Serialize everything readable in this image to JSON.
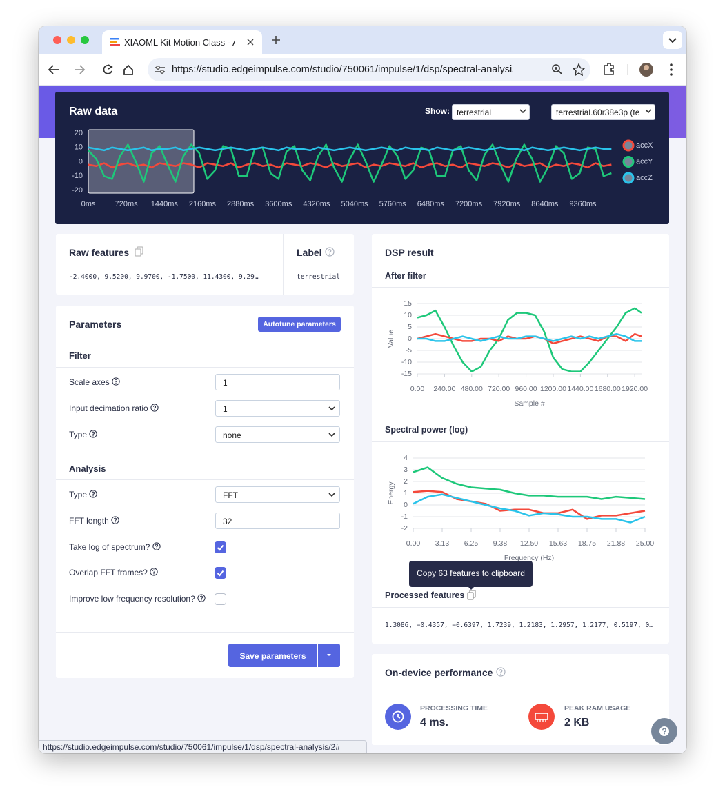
{
  "browser": {
    "tab_title": "XIAOML Kit Motion Class - AI",
    "url": "https://studio.edgeimpulse.com/studio/750061/impulse/1/dsp/spectral-analysis...",
    "status_url": "https://studio.edgeimpulse.com/studio/750061/impulse/1/dsp/spectral-analysis/2#"
  },
  "raw_data": {
    "title": "Raw data",
    "show_label": "Show:",
    "show_value": "terrestrial",
    "sample_value": "terrestrial.60r38e3p (te"
  },
  "raw_features": {
    "title": "Raw features",
    "values": "-2.4000, 9.5200, 9.9700, -1.7500, 11.4300, 9.29…"
  },
  "label": {
    "title": "Label",
    "value": "terrestrial"
  },
  "parameters": {
    "title": "Parameters",
    "autotune": "Autotune parameters",
    "save": "Save parameters",
    "filter": {
      "heading": "Filter",
      "fields": [
        {
          "label": "Scale axes",
          "control": "input",
          "value": "1",
          "help": true
        },
        {
          "label": "Input decimation ratio",
          "control": "select",
          "value": "1",
          "help": true
        },
        {
          "label": "Type",
          "control": "select",
          "value": "none",
          "help": true
        }
      ]
    },
    "analysis": {
      "heading": "Analysis",
      "fields": [
        {
          "label": "Type",
          "control": "select",
          "value": "FFT",
          "help": true
        },
        {
          "label": "FFT length",
          "control": "input",
          "value": "32",
          "help": true
        },
        {
          "label": "Take log of spectrum?",
          "control": "checkbox",
          "checked": true,
          "help": true
        },
        {
          "label": "Overlap FFT frames?",
          "control": "checkbox",
          "checked": true,
          "help": true
        },
        {
          "label": "Improve low frequency resolution?",
          "control": "checkbox",
          "checked": false,
          "help": true
        }
      ]
    }
  },
  "dsp_result": {
    "title": "DSP result",
    "after_filter": "After filter",
    "spectral": "Spectral power (log)",
    "tooltip": "Copy 63 features to clipboard",
    "processed_title": "Processed features",
    "processed_values": "1.3086, −0.4357, −0.6397, 1.7239, 1.2183, 1.2957, 1.2177, 0.5197, 0…"
  },
  "performance": {
    "title": "On-device performance",
    "processing_label": "PROCESSING TIME",
    "processing_value": "4 ms.",
    "ram_label": "PEAK RAM USAGE",
    "ram_value": "2 KB"
  },
  "chart_data": [
    {
      "type": "line",
      "legend": "right",
      "grid": false,
      "x": [
        0,
        150,
        300,
        450,
        600,
        750,
        900,
        1050,
        1200,
        1350,
        1500,
        1650,
        1800,
        1950,
        2100,
        2250,
        2400,
        2550,
        2700,
        2850,
        3000,
        3150,
        3300,
        3450,
        3600,
        3750,
        3900,
        4050,
        4200,
        4350,
        4500,
        4650,
        4800,
        4950,
        5100,
        5250,
        5400,
        5550,
        5700,
        5850,
        6000,
        6150,
        6300,
        6450,
        6600,
        6750,
        6900,
        7050,
        7200,
        7350,
        7500,
        7650,
        7800,
        7950,
        8100,
        8250,
        8400,
        8550,
        8700,
        8850,
        9000,
        9150,
        9300,
        9450,
        9600,
        9750,
        9900
      ],
      "xlim": [
        0,
        10000
      ],
      "xticks": [
        {
          "value": 0,
          "label": "0ms"
        },
        {
          "value": 720,
          "label": "720ms"
        },
        {
          "value": 1440,
          "label": "1440ms"
        },
        {
          "value": 2160,
          "label": "2160ms"
        },
        {
          "value": 2880,
          "label": "2880ms"
        },
        {
          "value": 3600,
          "label": "3600ms"
        },
        {
          "value": 4320,
          "label": "4320ms"
        },
        {
          "value": 5040,
          "label": "5040ms"
        },
        {
          "value": 5760,
          "label": "5760ms"
        },
        {
          "value": 6480,
          "label": "6480ms"
        },
        {
          "value": 7200,
          "label": "7200ms"
        },
        {
          "value": 7920,
          "label": "7920ms"
        },
        {
          "value": 8640,
          "label": "8640ms"
        },
        {
          "value": 9360,
          "label": "9360ms"
        }
      ],
      "ylim": [
        -20,
        20
      ],
      "yticks": [
        -20,
        -10,
        0,
        10,
        20
      ],
      "series": [
        {
          "name": "accX",
          "color": "#f4493b",
          "values": [
            -2,
            -3,
            -1,
            -4,
            -2,
            -1,
            -3,
            -2,
            -4,
            -1,
            -2,
            -3,
            -1,
            -2,
            -4,
            -1,
            -2,
            -3,
            -1,
            -4,
            -2,
            -1,
            -3,
            -2,
            -4,
            -1,
            -2,
            -3,
            -1,
            -2,
            -4,
            -1,
            -3,
            -2,
            -1,
            -4,
            -2,
            -3,
            -1,
            -2,
            -3,
            -1,
            -4,
            -2,
            -1,
            -3,
            -2,
            -4,
            -1,
            -2,
            -3,
            -1,
            -2,
            -4,
            -1,
            -3,
            -2,
            -1,
            -4,
            -2,
            -3,
            -1,
            -2,
            -4,
            -1,
            -3,
            -2
          ]
        },
        {
          "name": "accY",
          "color": "#1ec87a",
          "values": [
            8,
            2,
            -10,
            -12,
            4,
            12,
            0,
            -14,
            6,
            11,
            -2,
            -14,
            4,
            12,
            6,
            -12,
            -6,
            11,
            9,
            -10,
            -10,
            9,
            10,
            -8,
            -12,
            7,
            11,
            -6,
            -13,
            4,
            12,
            -4,
            -14,
            2,
            12,
            0,
            -14,
            -2,
            11,
            4,
            -12,
            -6,
            10,
            8,
            -10,
            -10,
            8,
            11,
            -6,
            -13,
            5,
            12,
            -2,
            -14,
            2,
            12,
            2,
            -14,
            -4,
            11,
            6,
            -12,
            -8,
            10,
            9,
            -10,
            -8
          ]
        },
        {
          "name": "accZ",
          "color": "#2ac3ea",
          "values": [
            10,
            9,
            8,
            10,
            9,
            8,
            9,
            10,
            8,
            9,
            9,
            10,
            8,
            9,
            10,
            9,
            8,
            9,
            10,
            9,
            8,
            9,
            10,
            9,
            8,
            10,
            9,
            9,
            8,
            10,
            9,
            8,
            9,
            10,
            9,
            8,
            9,
            10,
            9,
            8,
            10,
            9,
            9,
            8,
            10,
            9,
            8,
            9,
            10,
            9,
            8,
            9,
            10,
            9,
            9,
            8,
            10,
            9,
            8,
            9,
            10,
            9,
            8,
            9,
            10,
            9,
            9
          ]
        }
      ]
    },
    {
      "type": "line",
      "grid": true,
      "xlabel": "Sample #",
      "ylabel": "Value",
      "x": [
        0,
        80,
        160,
        240,
        320,
        400,
        480,
        560,
        640,
        720,
        800,
        880,
        960,
        1040,
        1120,
        1200,
        1280,
        1360,
        1440,
        1520,
        1600,
        1680,
        1760,
        1840,
        1920,
        1980
      ],
      "xlim": [
        0,
        1980
      ],
      "xticks": [
        {
          "value": 0,
          "label": "0.00"
        },
        {
          "value": 240,
          "label": "240.00"
        },
        {
          "value": 480,
          "label": "480.00"
        },
        {
          "value": 720,
          "label": "720.00"
        },
        {
          "value": 960,
          "label": "960.00"
        },
        {
          "value": 1200,
          "label": "1200.00"
        },
        {
          "value": 1440,
          "label": "1440.00"
        },
        {
          "value": 1680,
          "label": "1680.00"
        },
        {
          "value": 1920,
          "label": "1920.00"
        }
      ],
      "ylim": [
        -15,
        15
      ],
      "yticks": [
        -15,
        -10,
        -5,
        0,
        5,
        10,
        15
      ],
      "series": [
        {
          "color": "#1ec87a",
          "values": [
            9,
            10,
            12,
            5,
            -3,
            -10,
            -14,
            -12,
            -5,
            0,
            8,
            11,
            11,
            10,
            3,
            -8,
            -13,
            -14,
            -14,
            -10,
            -5,
            0,
            5,
            11,
            13,
            11
          ]
        },
        {
          "color": "#f4493b",
          "values": [
            0,
            1,
            2,
            1,
            0,
            -1,
            -1,
            0,
            0,
            -1,
            1,
            0,
            0,
            1,
            0,
            -2,
            -1,
            0,
            1,
            0,
            -1,
            1,
            1,
            -1,
            2,
            1
          ]
        },
        {
          "color": "#2ac3ea",
          "values": [
            0,
            0,
            -1,
            -1,
            0,
            1,
            0,
            -1,
            0,
            1,
            0,
            0,
            1,
            1,
            0,
            -1,
            0,
            1,
            0,
            1,
            0,
            1,
            2,
            1,
            -1,
            -1
          ]
        }
      ]
    },
    {
      "type": "line",
      "grid": true,
      "xlabel": "Frequency (Hz)",
      "ylabel": "Energy",
      "x": [
        0,
        1.5625,
        3.125,
        4.6875,
        6.25,
        7.8125,
        9.375,
        10.9375,
        12.5,
        14.0625,
        15.625,
        17.1875,
        18.75,
        20.3125,
        21.875,
        23.4375,
        25
      ],
      "xlim": [
        0,
        25
      ],
      "xticks": [
        {
          "value": 0,
          "label": "0.00"
        },
        {
          "value": 3.125,
          "label": "3.13"
        },
        {
          "value": 6.25,
          "label": "6.25"
        },
        {
          "value": 9.375,
          "label": "9.38"
        },
        {
          "value": 12.5,
          "label": "12.50"
        },
        {
          "value": 15.625,
          "label": "15.63"
        },
        {
          "value": 18.75,
          "label": "18.75"
        },
        {
          "value": 21.875,
          "label": "21.88"
        },
        {
          "value": 25,
          "label": "25.00"
        }
      ],
      "ylim": [
        -2,
        4
      ],
      "yticks": [
        -2,
        -1,
        0,
        1,
        2,
        3,
        4
      ],
      "series": [
        {
          "color": "#1ec87a",
          "values": [
            2.8,
            3.2,
            2.3,
            1.8,
            1.5,
            1.4,
            1.3,
            1.0,
            0.8,
            0.8,
            0.7,
            0.7,
            0.7,
            0.5,
            0.7,
            0.6,
            0.5
          ]
        },
        {
          "color": "#f4493b",
          "values": [
            1.1,
            1.2,
            1.1,
            0.5,
            0.3,
            0.1,
            -0.5,
            -0.4,
            -0.4,
            -0.7,
            -0.7,
            -0.4,
            -1.2,
            -0.9,
            -0.9,
            -0.7,
            -0.5
          ]
        },
        {
          "color": "#2ac3ea",
          "values": [
            0.1,
            0.7,
            0.9,
            0.6,
            0.3,
            0.0,
            -0.3,
            -0.5,
            -0.9,
            -0.7,
            -0.8,
            -1.0,
            -1.0,
            -1.2,
            -1.2,
            -1.5,
            -1.0
          ]
        }
      ]
    }
  ]
}
